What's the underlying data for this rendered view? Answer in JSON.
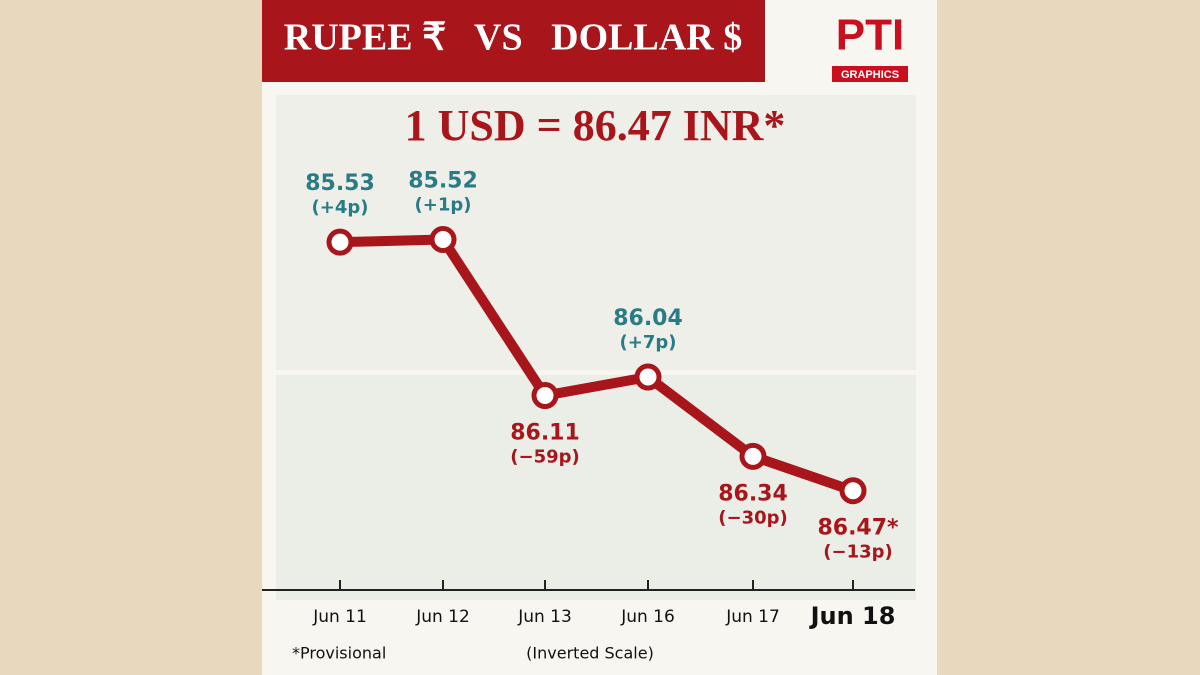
{
  "chart_data": {
    "type": "line",
    "title": "RUPEE ₹   VS   DOLLAR $",
    "headline": "1 USD = 86.47 INR*",
    "logo": "PTI",
    "logo_subtitle": "GRAPHICS",
    "footnote": "*Provisional",
    "axis_note": "(Inverted Scale)",
    "categories": [
      "Jun 11",
      "Jun 12",
      "Jun 13",
      "Jun 16",
      "Jun 17",
      "Jun 18"
    ],
    "values": [
      85.53,
      85.52,
      86.11,
      86.04,
      86.34,
      86.47
    ],
    "value_labels": [
      "85.53",
      "85.52",
      "86.11",
      "86.04",
      "86.34",
      "86.47*"
    ],
    "change_labels": [
      "(+4p)",
      "(+1p)",
      "(−59p)",
      "(+7p)",
      "(−30p)",
      "(−13p)"
    ],
    "label_colors": [
      "#2a7b86",
      "#2a7b86",
      "#a8151b",
      "#2a7b86",
      "#a8151b",
      "#a8151b"
    ],
    "color": "#a8151b",
    "ylim": [
      85.0,
      86.8
    ],
    "inverted": true
  }
}
